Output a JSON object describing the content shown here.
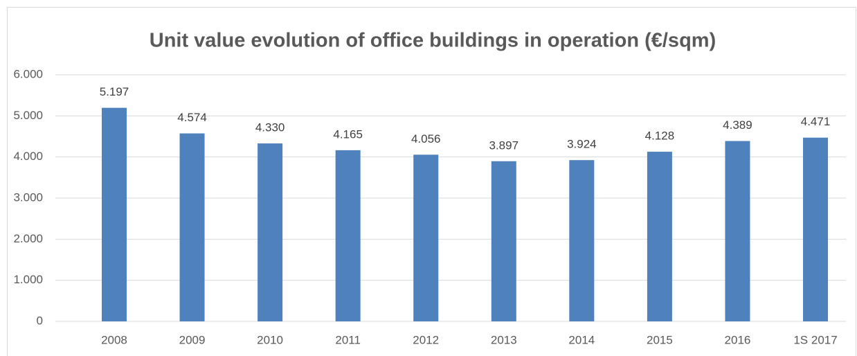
{
  "chart_data": {
    "type": "bar",
    "title": "Unit value evolution of office buildings in operation (€/sqm)",
    "categories": [
      "2008",
      "2009",
      "2010",
      "2011",
      "2012",
      "2013",
      "2014",
      "2015",
      "2016",
      "1S 2017"
    ],
    "values": [
      5197,
      4574,
      4330,
      4165,
      4056,
      3897,
      3924,
      4128,
      4389,
      4471
    ],
    "value_labels": [
      "5.197",
      "4.574",
      "4.330",
      "4.165",
      "4.056",
      "3.897",
      "3.924",
      "4.128",
      "4.389",
      "4.471"
    ],
    "color": "#4f81bd",
    "ylim": [
      0,
      6000
    ],
    "yticks": [
      0,
      {
        "value": 1000,
        "label": "1.000"
      },
      {
        "value": 2000,
        "label": "2.000"
      },
      {
        "value": 3000,
        "label": "3.000"
      },
      {
        "value": 4000,
        "label": "4.000"
      },
      {
        "value": 5000,
        "label": "5.000"
      },
      {
        "value": 6000,
        "label": "6.000"
      }
    ],
    "grid": true
  }
}
